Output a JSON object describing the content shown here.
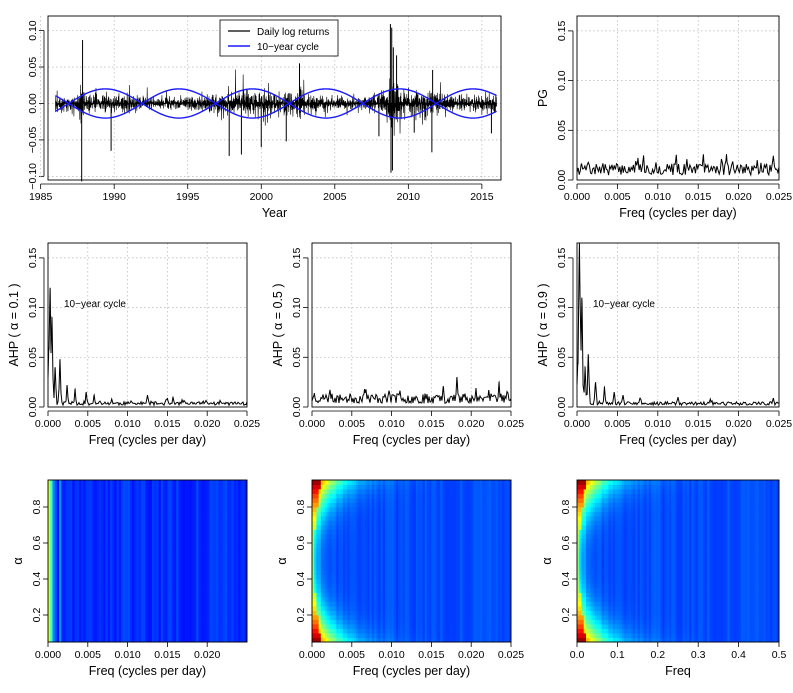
{
  "colors": {
    "returns": "#000000",
    "cycle": "#1a1aff",
    "grid": "#b5b5b5",
    "axis": "#000000"
  },
  "chart_data": [
    {
      "id": "returns",
      "type": "line",
      "title": "",
      "xlabel": "Year",
      "ylabel": "",
      "xlim": [
        1985.5,
        2016.3
      ],
      "ylim": [
        -0.105,
        0.12
      ],
      "xticks": [
        1985,
        1990,
        1995,
        2000,
        2005,
        2010,
        2015
      ],
      "yticks": [
        -0.1,
        -0.05,
        0.0,
        0.05,
        0.1
      ],
      "ytick_labels": [
        "−0.10",
        "−0.05",
        "0.00",
        "0.05",
        "0.10"
      ],
      "grid": true,
      "legend": {
        "position": "top-center",
        "entries": [
          "Daily log returns",
          "10−year cycle"
        ]
      },
      "series": [
        {
          "name": "Daily log returns",
          "kind": "volatility",
          "x_range": [
            1986.0,
            2016.0
          ],
          "base_volatility": 0.0085,
          "volatility_envelope": [
            [
              1986.0,
              0.8
            ],
            [
              1987.0,
              0.9
            ],
            [
              1987.6,
              1.1
            ],
            [
              1987.8,
              3.5
            ],
            [
              1988.0,
              1.5
            ],
            [
              1988.5,
              1.0
            ],
            [
              1990.5,
              1.0
            ],
            [
              1991.5,
              0.9
            ],
            [
              1993.0,
              0.7
            ],
            [
              1995.0,
              0.75
            ],
            [
              1997.0,
              1.1
            ],
            [
              1998.7,
              1.5
            ],
            [
              2000.0,
              1.6
            ],
            [
              2001.5,
              1.5
            ],
            [
              2002.7,
              1.6
            ],
            [
              2004.0,
              0.9
            ],
            [
              2006.0,
              0.7
            ],
            [
              2007.5,
              1.0
            ],
            [
              2008.5,
              1.5
            ],
            [
              2008.8,
              3.6
            ],
            [
              2009.3,
              2.5
            ],
            [
              2010.0,
              1.3
            ],
            [
              2011.7,
              1.6
            ],
            [
              2013.0,
              0.9
            ],
            [
              2014.5,
              0.8
            ],
            [
              2015.7,
              1.1
            ],
            [
              2016.0,
              1.1
            ]
          ],
          "spikes": [
            [
              1987.79,
              -0.107
            ],
            [
              1987.85,
              0.087
            ],
            [
              1989.79,
              -0.065
            ],
            [
              1997.82,
              -0.072
            ],
            [
              1998.65,
              -0.07
            ],
            [
              2000.0,
              -0.06
            ],
            [
              2001.7,
              -0.052
            ],
            [
              2002.6,
              0.055
            ],
            [
              2008.0,
              -0.045
            ],
            [
              2008.78,
              0.109
            ],
            [
              2008.82,
              -0.095
            ],
            [
              2008.87,
              0.104
            ],
            [
              2008.92,
              -0.092
            ],
            [
              2008.98,
              0.077
            ],
            [
              2009.2,
              0.066
            ],
            [
              2010.4,
              -0.04
            ],
            [
              2011.6,
              -0.067
            ],
            [
              2011.65,
              0.046
            ],
            [
              2015.65,
              -0.041
            ]
          ]
        },
        {
          "name": "10−year cycle",
          "kind": "sinusoid",
          "x_range": [
            1986.0,
            2016.0
          ],
          "amplitude": 0.02,
          "period_years": 10,
          "peak_years": [
            1989.4,
            1999.4,
            2009.4
          ]
        }
      ]
    },
    {
      "id": "pg",
      "type": "line",
      "title": "",
      "xlabel": "Freq (cycles per day)",
      "ylabel": "PG",
      "xlim": [
        0,
        0.025
      ],
      "ylim": [
        0,
        0.165
      ],
      "xticks": [
        0.0,
        0.005,
        0.01,
        0.015,
        0.02,
        0.025
      ],
      "yticks": [
        0.0,
        0.05,
        0.1,
        0.15
      ],
      "grid": true,
      "series": [
        {
          "name": "PG",
          "kind": "noise",
          "baseline": 0.008,
          "amplitude": 0.012,
          "points": 180,
          "seed": 7,
          "peaks": [
            [
              0.0005,
              0.015
            ],
            [
              0.0185,
              0.026
            ],
            [
              0.0243,
              0.024
            ],
            [
              0.0223,
              0.02
            ],
            [
              0.0136,
              0.021
            ],
            [
              0.0075,
              0.019
            ]
          ]
        }
      ]
    },
    {
      "id": "ahp01",
      "type": "line",
      "title": "",
      "xlabel": "Freq (cycles per day)",
      "ylabel": "AHP ( α = 0.1 )",
      "annotation": "10−year cycle",
      "xlim": [
        0,
        0.025
      ],
      "ylim": [
        0,
        0.165
      ],
      "xticks": [
        0.0,
        0.005,
        0.01,
        0.015,
        0.02,
        0.025
      ],
      "yticks": [
        0.0,
        0.05,
        0.1,
        0.15
      ],
      "grid": true,
      "series": [
        {
          "name": "AHP 0.1",
          "kind": "peaked",
          "baseline": 0.003,
          "amplitude": 0.0035,
          "points": 200,
          "seed": 11,
          "peaks": [
            [
              0.0001,
              0.06
            ],
            [
              0.00027,
              0.12
            ],
            [
              0.0005,
              0.09
            ],
            [
              0.0009,
              0.04
            ],
            [
              0.0015,
              0.048
            ],
            [
              0.0024,
              0.022
            ],
            [
              0.0034,
              0.018
            ],
            [
              0.0048,
              0.015
            ],
            [
              0.0058,
              0.012
            ],
            [
              0.008,
              0.008
            ],
            [
              0.0125,
              0.012
            ],
            [
              0.015,
              0.009
            ],
            [
              0.0157,
              0.01
            ],
            [
              0.0195,
              0.006
            ]
          ]
        }
      ]
    },
    {
      "id": "ahp05",
      "type": "line",
      "title": "",
      "xlabel": "Freq (cycles per day)",
      "ylabel": "AHP ( α = 0.5 )",
      "xlim": [
        0,
        0.025
      ],
      "ylim": [
        0,
        0.165
      ],
      "xticks": [
        0.0,
        0.005,
        0.01,
        0.015,
        0.02,
        0.025
      ],
      "yticks": [
        0.0,
        0.05,
        0.1,
        0.15
      ],
      "grid": true,
      "series": [
        {
          "name": "AHP 0.5",
          "kind": "noise",
          "baseline": 0.006,
          "amplitude": 0.01,
          "points": 200,
          "seed": 23,
          "peaks": [
            [
              0.0003,
              0.014
            ],
            [
              0.0182,
              0.03
            ],
            [
              0.0165,
              0.021
            ],
            [
              0.0235,
              0.025
            ],
            [
              0.0066,
              0.018
            ],
            [
              0.0222,
              0.017
            ]
          ]
        }
      ]
    },
    {
      "id": "ahp09",
      "type": "line",
      "title": "",
      "xlabel": "Freq (cycles per day)",
      "ylabel": "AHP ( α = 0.9 )",
      "annotation": "10−year cycle",
      "xlim": [
        0,
        0.025
      ],
      "ylim": [
        0,
        0.165
      ],
      "xticks": [
        0.0,
        0.005,
        0.01,
        0.015,
        0.02,
        0.025
      ],
      "yticks": [
        0.0,
        0.05,
        0.1,
        0.15
      ],
      "grid": true,
      "series": [
        {
          "name": "AHP 0.9",
          "kind": "peaked",
          "baseline": 0.003,
          "amplitude": 0.0035,
          "points": 200,
          "seed": 31,
          "peaks": [
            [
              0.0001,
              0.045
            ],
            [
              0.0003,
              0.165
            ],
            [
              0.0006,
              0.11
            ],
            [
              0.001,
              0.04
            ],
            [
              0.0014,
              0.053
            ],
            [
              0.0023,
              0.025
            ],
            [
              0.0034,
              0.02
            ],
            [
              0.0046,
              0.015
            ],
            [
              0.0057,
              0.012
            ],
            [
              0.0078,
              0.009
            ],
            [
              0.0125,
              0.01
            ],
            [
              0.0165,
              0.008
            ],
            [
              0.0243,
              0.009
            ]
          ]
        }
      ]
    },
    {
      "id": "heat1",
      "type": "heatmap",
      "title": "",
      "xlabel": "Freq (cycles per day)",
      "ylabel": "α",
      "xlim": [
        0,
        0.025
      ],
      "ylim": [
        0.05,
        0.95
      ],
      "xticks": [
        0.0,
        0.005,
        0.01,
        0.015,
        0.02
      ],
      "yticks": [
        0.2,
        0.4,
        0.6,
        0.8
      ],
      "colormap": "jet",
      "pattern": "vertical-stripes",
      "hot_bands": [
        [
          0.0001,
          0.6
        ],
        [
          0.0004,
          0.45
        ],
        [
          0.0008,
          0.32
        ],
        [
          0.0015,
          0.28
        ],
        [
          0.0024,
          0.18
        ]
      ]
    },
    {
      "id": "heat2",
      "type": "heatmap",
      "title": "",
      "xlabel": "Freq (cycles per day)",
      "ylabel": "α",
      "xlim": [
        0,
        0.025
      ],
      "ylim": [
        0.05,
        0.95
      ],
      "xticks": [
        0.0,
        0.005,
        0.01,
        0.015,
        0.02,
        0.025
      ],
      "yticks": [
        0.2,
        0.4,
        0.6,
        0.8
      ],
      "colormap": "jet",
      "pattern": "edge-hot",
      "edge_width": 0.0021
    },
    {
      "id": "heat3",
      "type": "heatmap",
      "title": "",
      "xlabel": "Freq",
      "ylabel": "α",
      "xlim": [
        0,
        0.5
      ],
      "ylim": [
        0.05,
        0.95
      ],
      "xticks": [
        0.0,
        0.1,
        0.2,
        0.3,
        0.4,
        0.5
      ],
      "yticks": [
        0.2,
        0.4,
        0.6,
        0.8
      ],
      "colormap": "jet",
      "pattern": "edge-hot",
      "edge_width": 0.042
    }
  ]
}
